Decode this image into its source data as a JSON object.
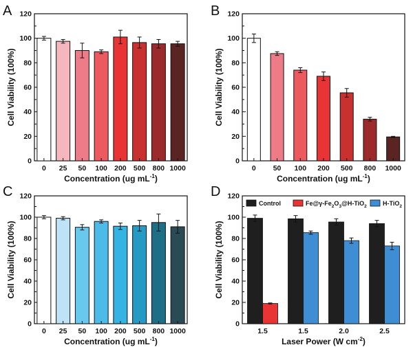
{
  "chart_data": [
    {
      "panel": "A",
      "type": "bar",
      "xlabel": "Concentration (ug mL",
      "xlabel_sup": "-1",
      "xlabel_end": ")",
      "ylabel": "Cell Viability (100%)",
      "ylim": [
        0,
        120
      ],
      "yticks": [
        0,
        20,
        40,
        60,
        80,
        100,
        120
      ],
      "categories": [
        "0",
        "25",
        "50",
        "100",
        "200",
        "500",
        "800",
        "1000"
      ],
      "values": [
        100,
        97.5,
        90,
        89,
        101,
        96.5,
        95.5,
        95.5
      ],
      "errors": [
        1.5,
        1.5,
        6,
        1.5,
        5.5,
        4.5,
        3.5,
        2
      ],
      "colors": [
        "#ffffff",
        "#f5b7bd",
        "#ee7b88",
        "#ec5a60",
        "#e83434",
        "#c93030",
        "#9c2a2c",
        "#5a2422"
      ]
    },
    {
      "panel": "B",
      "type": "bar",
      "xlabel": "Concentration (ug mL",
      "xlabel_sup": "-1",
      "xlabel_end": ")",
      "ylabel": "Cell Viability (100%)",
      "ylim": [
        0,
        120
      ],
      "yticks": [
        0,
        20,
        40,
        60,
        80,
        100,
        120
      ],
      "categories": [
        "0",
        "50",
        "100",
        "200",
        "500",
        "800",
        "1000"
      ],
      "values": [
        100,
        87.5,
        74,
        69,
        55.5,
        34,
        19.5
      ],
      "errors": [
        3.5,
        1.5,
        2,
        3.5,
        3.5,
        1.5,
        0.5
      ],
      "colors": [
        "#ffffff",
        "#ee7b88",
        "#ec5a60",
        "#e83434",
        "#c93030",
        "#9c2a2c",
        "#5a2422"
      ]
    },
    {
      "panel": "C",
      "type": "bar",
      "xlabel": "Concentration (ug mL",
      "xlabel_sup": "-1",
      "xlabel_end": ")",
      "ylabel": "Cell Viability (100%)",
      "ylim": [
        0,
        120
      ],
      "yticks": [
        0,
        20,
        40,
        60,
        80,
        100,
        120
      ],
      "categories": [
        "0",
        "25",
        "50",
        "100",
        "200",
        "500",
        "800",
        "1000"
      ],
      "values": [
        100,
        99,
        90.5,
        96,
        91.5,
        92,
        95,
        91
      ],
      "errors": [
        1.5,
        1.5,
        2.5,
        1.5,
        3,
        5,
        8,
        6
      ],
      "colors": [
        "#ffffff",
        "#bfe3f6",
        "#68c8ee",
        "#4dbbe8",
        "#35b3e3",
        "#259ac4",
        "#1d6f87",
        "#2a4a55"
      ]
    },
    {
      "panel": "D",
      "type": "bar",
      "xlabel": "Laser Power (W cm",
      "xlabel_sup": "-2",
      "xlabel_end": ")",
      "ylabel": "Cell Viability (100%)",
      "ylim": [
        0,
        120
      ],
      "yticks": [
        0,
        20,
        40,
        60,
        80,
        100,
        120
      ],
      "categories": [
        "1.5",
        "1.5",
        "2.0",
        "2.5"
      ],
      "series": [
        {
          "name": "Control",
          "color": "#1f1f1f",
          "values": [
            99,
            98.5,
            95.5,
            94
          ],
          "errors": [
            3,
            3,
            3,
            3
          ]
        },
        {
          "name": "Fe@γ-Fe2O3@H-TiO2",
          "color": "#e83434",
          "values": [
            19,
            null,
            null,
            null
          ],
          "errors": [
            0.5,
            null,
            null,
            null
          ]
        },
        {
          "name": "H-TiO2",
          "color": "#3f8ed4",
          "values": [
            null,
            85.5,
            78,
            73
          ],
          "errors": [
            null,
            1.5,
            2.5,
            3.5
          ]
        }
      ],
      "legend_location": "top"
    }
  ],
  "legend_labels": {
    "control": "Control",
    "fe_prefix": "Fe@γ-Fe",
    "fe_sub1": "2",
    "fe_mid": "O",
    "fe_sub2": "3",
    "fe_suffix": "@H-TiO",
    "fe_sub3": "2",
    "htio": "H-TiO",
    "htio_sub": "2"
  }
}
